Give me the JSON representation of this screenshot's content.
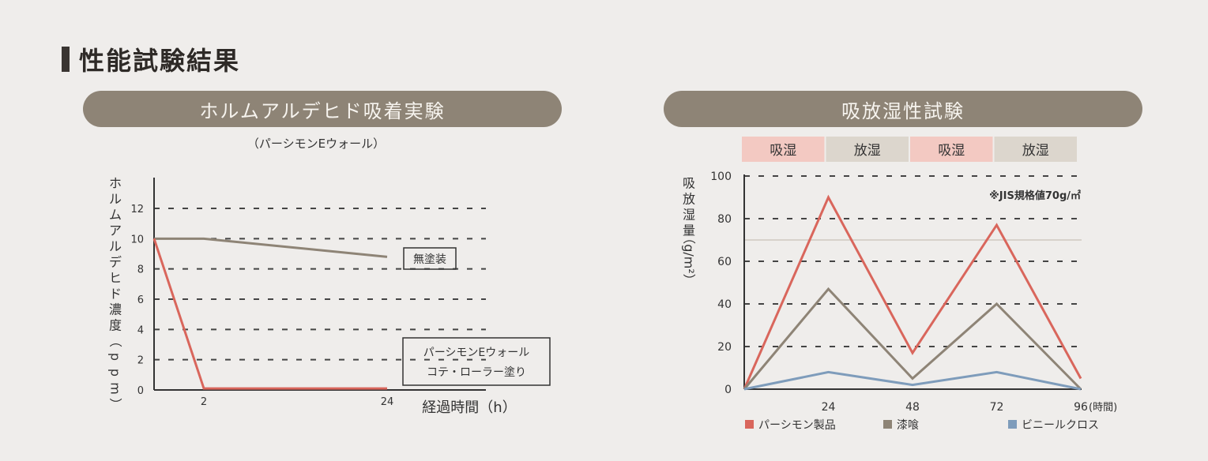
{
  "section_title": "性能試験結果",
  "panels": {
    "left_title": "ホルムアルデヒド吸着実験",
    "right_title": "吸放湿性試験"
  },
  "chart_data": [
    {
      "type": "line",
      "subtitle": "（パーシモンEウォール）",
      "ylabel": "ホルムアルデヒド濃度（ppm）",
      "xlabel": "経過時間（h）",
      "ylim": [
        0,
        12
      ],
      "y_ticks": [
        "0",
        "2",
        "4",
        "6",
        "8",
        "10",
        "12"
      ],
      "x_ticks": [
        "2",
        "24"
      ],
      "grid": true,
      "series": [
        {
          "name": "無塗装",
          "color": "#8e8476",
          "points": [
            [
              0,
              10
            ],
            [
              1,
              10
            ],
            [
              2,
              8.8
            ]
          ]
        },
        {
          "name": "パーシモンEウォール コテ・ローラー塗り",
          "label_lines": [
            "パーシモンEウォール",
            "コテ・ローラー塗り"
          ],
          "color": "#d9665c",
          "points": [
            [
              0,
              10
            ],
            [
              1,
              0.1
            ],
            [
              2,
              0.1
            ]
          ]
        }
      ]
    },
    {
      "type": "line",
      "phases": [
        "吸湿",
        "放湿",
        "吸湿",
        "放湿"
      ],
      "phase_colors": [
        "#f3c9c2",
        "#dcd6cd",
        "#f3c9c2",
        "#dcd6cd"
      ],
      "ylabel": "吸放湿量（g/m²）",
      "ylabel_main": "吸放湿量",
      "ylabel_unit": "（g/m²）",
      "xlabel": "(時間)",
      "x": [
        0,
        24,
        48,
        72,
        96
      ],
      "x_ticks": [
        "24",
        "48",
        "72",
        "96"
      ],
      "ylim": [
        0,
        100
      ],
      "y_ticks": [
        "0",
        "20",
        "40",
        "60",
        "80",
        "100"
      ],
      "grid": true,
      "reference_value": 70,
      "reference_label": "※JIS規格値70g/㎡",
      "legend_position": "bottom",
      "series": [
        {
          "name": "パーシモン製品",
          "color": "#d9665c",
          "values": [
            0,
            90,
            17,
            77,
            5
          ]
        },
        {
          "name": "漆喰",
          "color": "#8e8476",
          "values": [
            0,
            47,
            5,
            40,
            0
          ]
        },
        {
          "name": "ビニールクロス",
          "color": "#7e9cbb",
          "values": [
            0,
            8,
            2,
            8,
            0
          ]
        }
      ]
    }
  ]
}
